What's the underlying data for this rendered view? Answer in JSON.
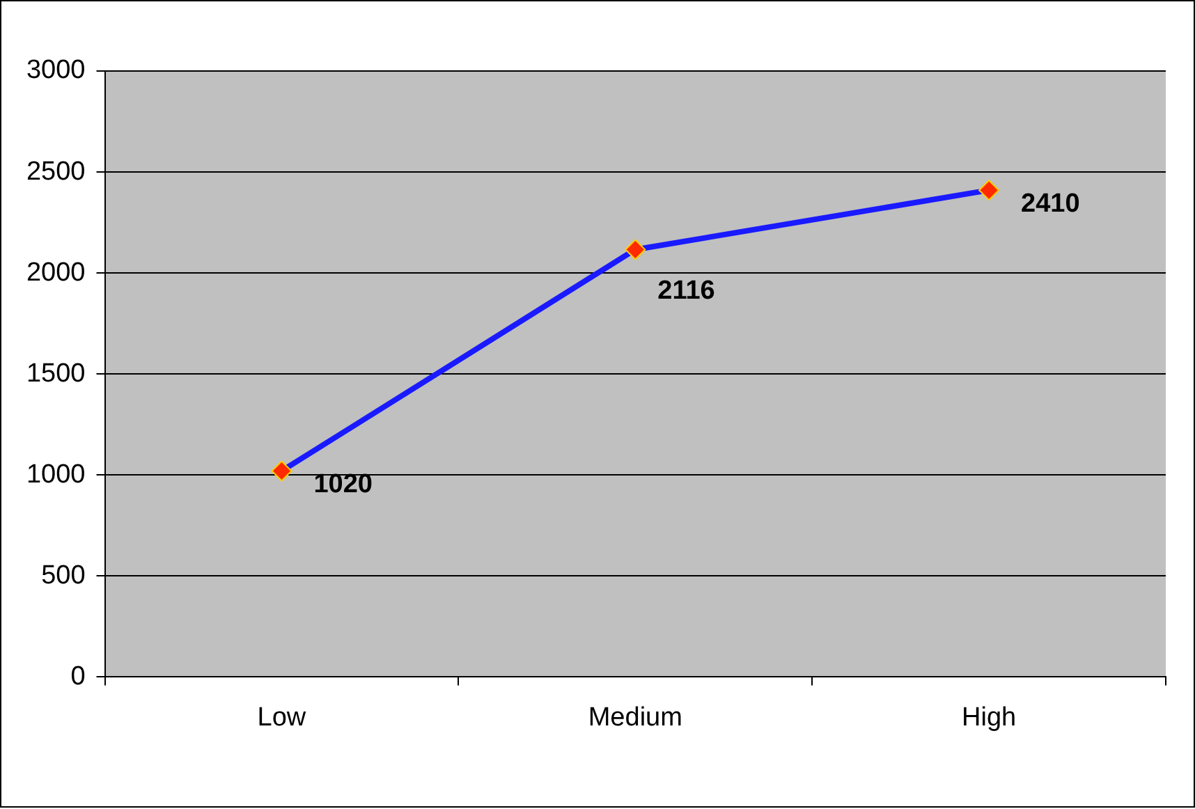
{
  "chart_data": {
    "type": "line",
    "categories": [
      "Low",
      "Medium",
      "High"
    ],
    "series": [
      {
        "color": "#1a1aff",
        "values": [
          1020,
          2116,
          2410
        ]
      }
    ],
    "ylim": [
      0,
      3000
    ],
    "yticks": [
      0,
      500,
      1000,
      1500,
      2000,
      2500,
      3000
    ],
    "grid": "y",
    "legend": false,
    "marker": "diamond",
    "line_style": "solid",
    "data_labels": true
  }
}
